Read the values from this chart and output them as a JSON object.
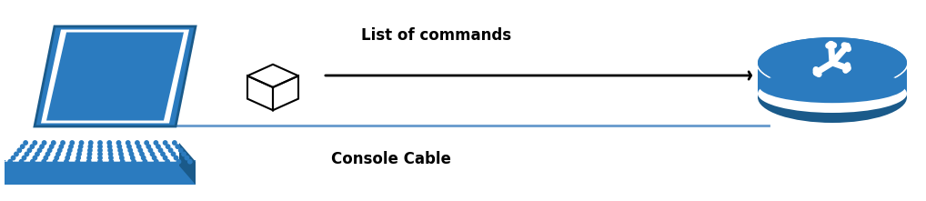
{
  "bg_color": "#ffffff",
  "laptop_blue": "#2b7bbf",
  "laptop_dark": "#1a5a8a",
  "laptop_white": "#ffffff",
  "router_blue": "#2b7bbf",
  "router_dark": "#1a5a8a",
  "router_rim": "#ffffff",
  "cable_color": "#6699cc",
  "arrow_color": "#000000",
  "white": "#ffffff",
  "text_commands": "List of commands",
  "text_cable": "Console Cable",
  "text_fontsize": 12,
  "text_fontweight": "bold",
  "fig_w": 10.18,
  "fig_h": 2.21,
  "dpi": 100
}
